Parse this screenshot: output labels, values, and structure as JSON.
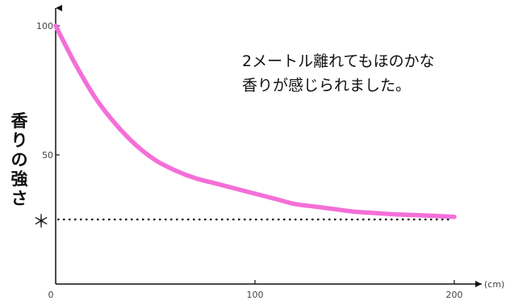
{
  "chart_data": {
    "type": "line",
    "title": "",
    "xlabel": "",
    "x_unit": "(cm)",
    "ylabel": "香りの強さ",
    "xlim": [
      0,
      200
    ],
    "ylim": [
      0,
      100
    ],
    "x_ticks": [
      {
        "value": 0,
        "label": "0"
      },
      {
        "value": 100,
        "label": "100"
      },
      {
        "value": 200,
        "label": "200"
      }
    ],
    "y_ticks": [
      {
        "value": 50,
        "label": "50"
      },
      {
        "value": 100,
        "label": "100"
      }
    ],
    "grid": false,
    "series": [
      {
        "color": "#f46fd8",
        "x": [
          0,
          10,
          20,
          30,
          40,
          50,
          60,
          70,
          80,
          90,
          100,
          110,
          120,
          130,
          140,
          150,
          160,
          170,
          180,
          190,
          200
        ],
        "y": [
          100,
          85,
          72,
          62,
          54,
          48,
          44,
          41,
          39,
          37,
          35,
          33,
          31,
          30,
          29,
          28,
          27.5,
          27,
          26.7,
          26.4,
          26
        ]
      }
    ],
    "reference_line": {
      "label": "＊",
      "y": 25,
      "style": "dotted",
      "color": "#111111"
    },
    "annotation": {
      "lines": [
        "2メートル離れてもほのかな",
        "香りが感じられました。"
      ]
    }
  }
}
